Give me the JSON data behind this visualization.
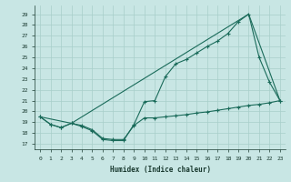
{
  "xlabel": "Humidex (Indice chaleur)",
  "xlim": [
    -0.5,
    23.5
  ],
  "ylim": [
    16.5,
    29.8
  ],
  "yticks": [
    17,
    18,
    19,
    20,
    21,
    22,
    23,
    24,
    25,
    26,
    27,
    28,
    29
  ],
  "xticks": [
    0,
    1,
    2,
    3,
    4,
    5,
    6,
    7,
    8,
    9,
    10,
    11,
    12,
    13,
    14,
    15,
    16,
    17,
    18,
    19,
    20,
    21,
    22,
    23
  ],
  "background_color": "#c8e6e4",
  "grid_color": "#a8ceca",
  "line_color": "#1a6b5a",
  "line1_x": [
    0,
    1,
    2,
    3,
    4,
    5,
    6,
    7,
    8,
    9,
    10,
    11,
    12,
    13,
    14,
    15,
    16,
    17,
    18,
    19,
    20,
    21,
    22,
    23
  ],
  "line1_y": [
    19.5,
    18.8,
    18.5,
    18.9,
    18.6,
    18.2,
    17.4,
    17.3,
    17.3,
    18.8,
    20.9,
    21.0,
    23.2,
    24.4,
    24.8,
    25.4,
    26.0,
    26.5,
    27.2,
    28.3,
    29.0,
    25.0,
    22.7,
    21.0
  ],
  "line2_x": [
    0,
    1,
    2,
    3,
    4,
    5,
    6,
    7,
    8,
    9,
    10,
    11,
    12,
    13,
    14,
    15,
    16,
    17,
    18,
    19,
    20,
    21,
    22,
    23
  ],
  "line2_y": [
    19.5,
    18.8,
    18.5,
    18.9,
    18.7,
    18.3,
    17.5,
    17.4,
    17.4,
    18.7,
    19.4,
    19.4,
    19.5,
    19.6,
    19.7,
    19.85,
    19.95,
    20.1,
    20.25,
    20.4,
    20.55,
    20.65,
    20.8,
    21.0
  ],
  "line3_x": [
    0,
    3,
    20,
    23
  ],
  "line3_y": [
    19.5,
    18.9,
    29.0,
    21.0
  ]
}
